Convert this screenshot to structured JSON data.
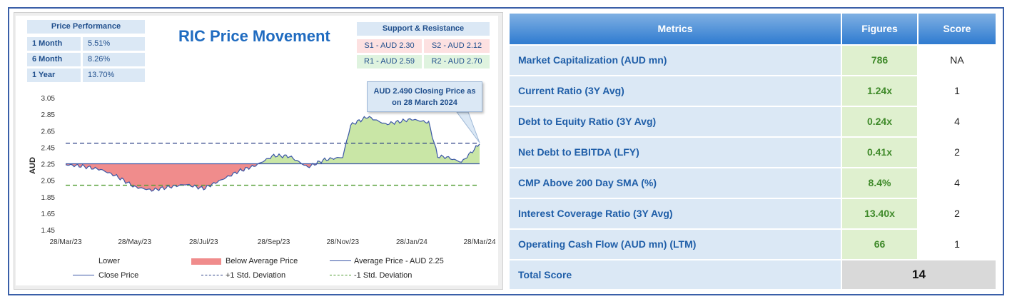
{
  "chart_title": "RIC Price Movement",
  "price_performance": {
    "header": "Price Performance",
    "rows": [
      {
        "label": "1 Month",
        "value": "5.51%"
      },
      {
        "label": "6 Month",
        "value": "8.26%"
      },
      {
        "label": "1 Year",
        "value": "13.70%"
      }
    ]
  },
  "support_resistance": {
    "header": "Support & Resistance",
    "s1": "S1 - AUD 2.30",
    "s2": "S2 - AUD 2.12",
    "r1": "R1 - AUD 2.59",
    "r2": "R2 - AUD 2.70"
  },
  "callout": {
    "line1": "AUD 2.490 Closing Price as",
    "line2": "on 28 March 2024"
  },
  "legend": {
    "lower": "Lower",
    "below_avg": "Below Average Price",
    "avg": "Average Price - AUD 2.25",
    "close": "Close Price",
    "plus_sd": "+1 Std. Deviation",
    "minus_sd": "-1 Std. Deviation"
  },
  "colors": {
    "close_line": "#3a56a6",
    "above_fill": "#c9e6a6",
    "below_fill": "#f08c8c",
    "plus_sd": "#2a3f86",
    "minus_sd": "#4d9a2e",
    "title": "#1f6bc0"
  },
  "chart_data": {
    "type": "area",
    "ylabel": "AUD",
    "xlabel": "",
    "ylim": [
      1.45,
      3.05
    ],
    "yticks": [
      "3.05",
      "2.85",
      "2.65",
      "2.45",
      "2.25",
      "2.05",
      "1.85",
      "1.65",
      "1.45"
    ],
    "x_ticks": [
      "28/Mar/23",
      "28/May/23",
      "28/Jul/23",
      "28/Sep/23",
      "28/Nov/23",
      "28/Jan/24",
      "28/Mar/24"
    ],
    "average_price": 2.25,
    "plus_1_sd": 2.5,
    "minus_1_sd": 1.99,
    "last_close": 2.49,
    "close_price": [
      [
        "28/Mar/23",
        2.24
      ],
      [
        "12/Apr/23",
        2.22
      ],
      [
        "28/Apr/23",
        2.18
      ],
      [
        "12/May/23",
        2.1
      ],
      [
        "28/May/23",
        1.97
      ],
      [
        "12/Jun/23",
        1.93
      ],
      [
        "28/Jun/23",
        1.97
      ],
      [
        "12/Jul/23",
        2.0
      ],
      [
        "28/Jul/23",
        1.95
      ],
      [
        "12/Aug/23",
        2.05
      ],
      [
        "28/Aug/23",
        2.16
      ],
      [
        "12/Sep/23",
        2.23
      ],
      [
        "28/Sep/23",
        2.35
      ],
      [
        "12/Oct/23",
        2.34
      ],
      [
        "28/Oct/23",
        2.21
      ],
      [
        "12/Nov/23",
        2.3
      ],
      [
        "28/Nov/23",
        2.33
      ],
      [
        "05/Dec/23",
        2.72
      ],
      [
        "20/Dec/23",
        2.82
      ],
      [
        "05/Jan/24",
        2.73
      ],
      [
        "28/Jan/24",
        2.79
      ],
      [
        "12/Feb/24",
        2.75
      ],
      [
        "20/Feb/24",
        2.34
      ],
      [
        "28/Feb/24",
        2.33
      ],
      [
        "12/Mar/24",
        2.27
      ],
      [
        "28/Mar/24",
        2.49
      ]
    ]
  },
  "metrics_table": {
    "headers": {
      "metrics": "Metrics",
      "figures": "Figures",
      "score": "Score"
    },
    "rows": [
      {
        "metric": "Market Capitalization (AUD mn)",
        "figure": "786",
        "score": "NA"
      },
      {
        "metric": "Current Ratio (3Y Avg)",
        "figure": "1.24x",
        "score": "1"
      },
      {
        "metric": "Debt to Equity Ratio (3Y Avg)",
        "figure": "0.24x",
        "score": "4"
      },
      {
        "metric": "Net Debt to EBITDA (LFY)",
        "figure": "0.41x",
        "score": "2"
      },
      {
        "metric": "CMP Above 200 Day SMA (%)",
        "figure": "8.4%",
        "score": "4"
      },
      {
        "metric": "Interest Coverage Ratio (3Y Avg)",
        "figure": "13.40x",
        "score": "2"
      },
      {
        "metric": "Operating Cash Flow (AUD mn) (LTM)",
        "figure": "66",
        "score": "1"
      }
    ],
    "total_label": "Total Score",
    "total_value": "14"
  }
}
